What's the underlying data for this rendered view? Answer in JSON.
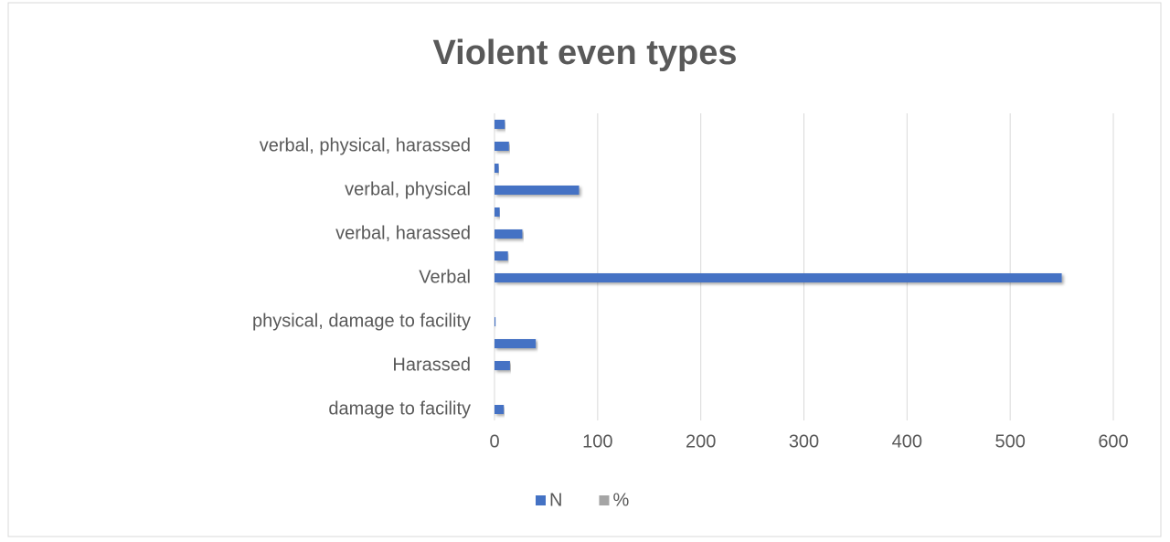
{
  "chart_data": {
    "type": "bar",
    "orientation": "horizontal",
    "title": "Violent even types",
    "categories": [
      "damage to facility",
      null,
      "Harassed",
      null,
      "physical, damage to facility",
      null,
      "Verbal",
      null,
      "verbal, harassed",
      null,
      "verbal, physical",
      null,
      "verbal, physical, harassed",
      null
    ],
    "series": [
      {
        "name": "N",
        "color": "#4472c4",
        "values": [
          9,
          0,
          15,
          40,
          1,
          0,
          550,
          13,
          27,
          5,
          82,
          4,
          14,
          10
        ]
      },
      {
        "name": "%",
        "color": "#a5a5a5",
        "values": [
          null,
          null,
          null,
          null,
          null,
          null,
          null,
          null,
          null,
          null,
          null,
          null,
          null,
          null
        ]
      }
    ],
    "xlim": [
      0,
      600
    ],
    "xticks": [
      0,
      100,
      200,
      300,
      400,
      500,
      600
    ],
    "grid": true,
    "legend": "bottom"
  }
}
